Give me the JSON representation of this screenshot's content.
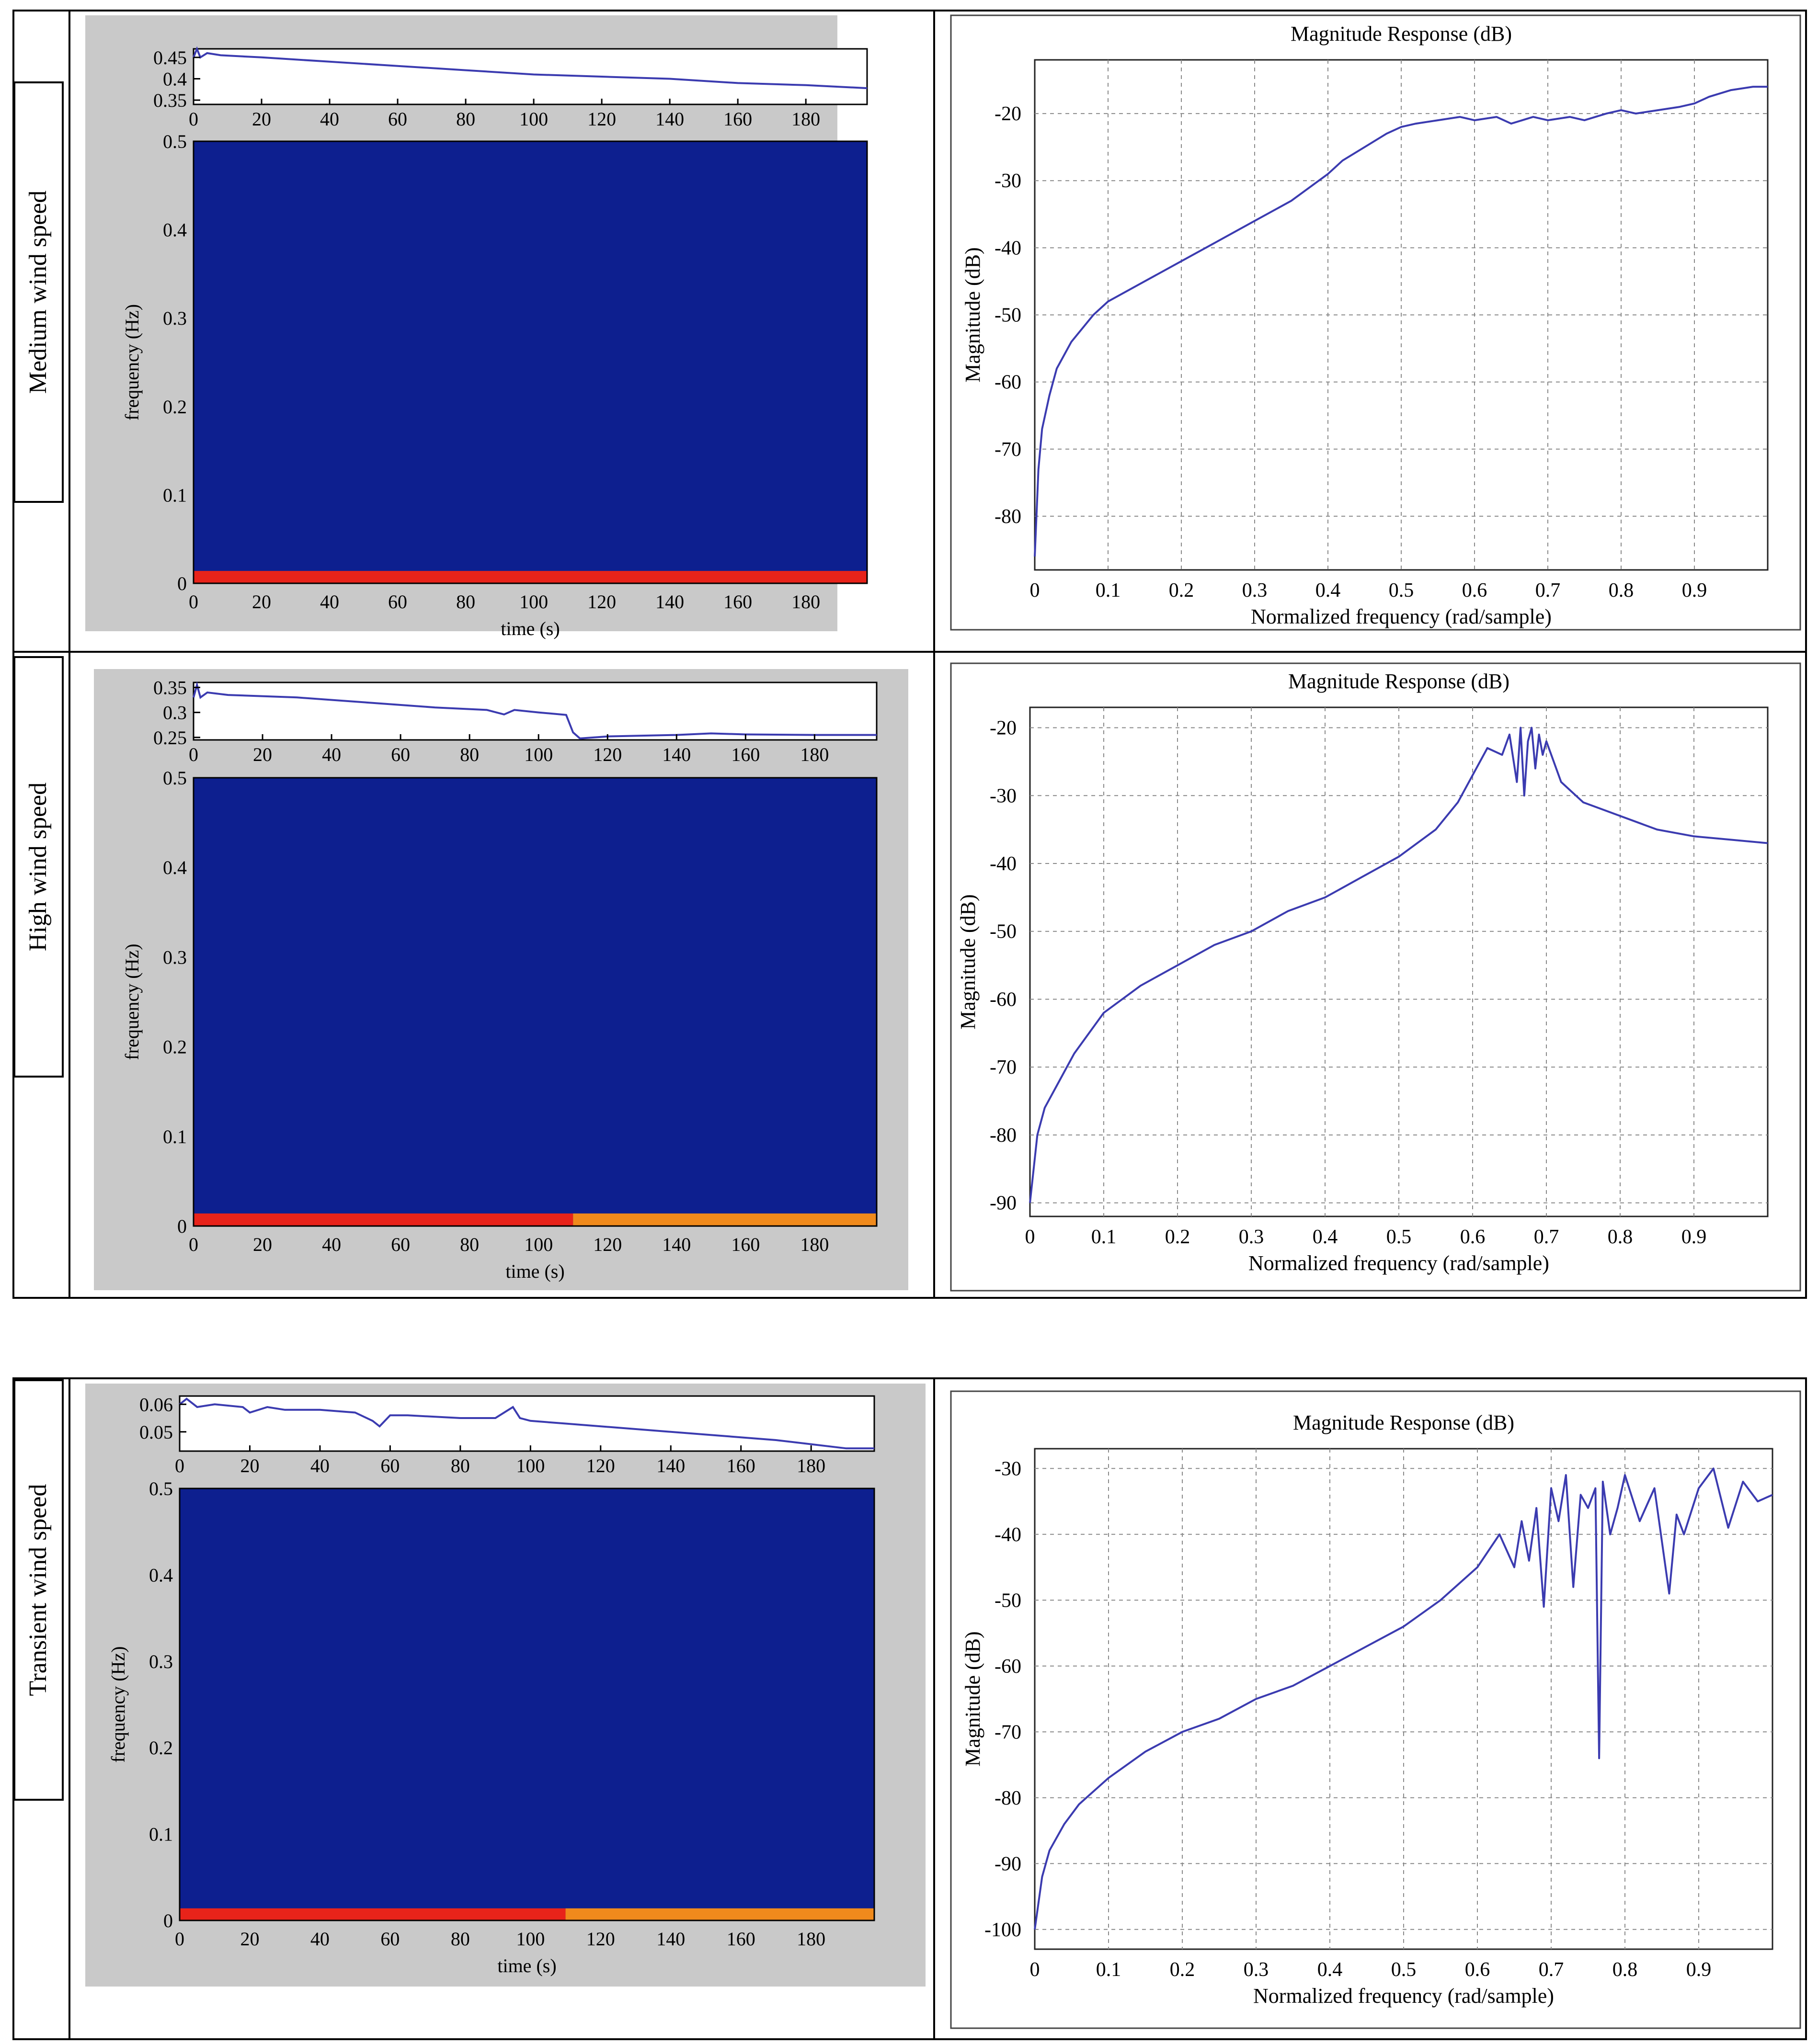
{
  "row_labels": [
    "Medium wind speed",
    "High wind speed",
    "Transient wind speed"
  ],
  "spectrogram_ylabel": "frequency (Hz)",
  "spectrogram_xlabel": "time (s)",
  "colors": {
    "panel_bg": "#c9c9c9",
    "spec_blue": "#0d1f8f",
    "spec_red": "#e8231a",
    "spec_orange": "#f08a1c",
    "trace": "#3b3bb0",
    "grid": "#8a8a8a"
  },
  "chart_data": [
    {
      "id": "medium-spectrogram",
      "type": "heatmap",
      "title": "",
      "xlabel": "time (s)",
      "ylabel": "frequency (Hz)",
      "xlim": [
        0,
        198
      ],
      "ylim": [
        0,
        0.5
      ],
      "xticks": [
        0,
        20,
        40,
        60,
        80,
        100,
        120,
        140,
        160,
        180
      ],
      "yticks": [
        0,
        0.1,
        0.2,
        0.3,
        0.4,
        0.5
      ],
      "yticklabels": [
        "0",
        "0.1",
        "0.2",
        "0.3",
        "0.4",
        "0.5"
      ],
      "background_level": "low",
      "low_band": [
        {
          "x_from": 0,
          "x_to": 198,
          "level": "high"
        }
      ],
      "trace": {
        "ylim": [
          0.34,
          0.47
        ],
        "yticks": [
          0.35,
          0.4,
          0.45
        ],
        "yticklabels": [
          "0.35",
          "0.4",
          "0.45"
        ],
        "x": [
          0,
          1,
          2,
          4,
          8,
          20,
          40,
          60,
          80,
          100,
          120,
          140,
          160,
          180,
          198
        ],
        "y": [
          0.45,
          0.47,
          0.45,
          0.46,
          0.455,
          0.45,
          0.44,
          0.43,
          0.42,
          0.41,
          0.405,
          0.4,
          0.39,
          0.385,
          0.378
        ]
      }
    },
    {
      "id": "medium-magnitude",
      "type": "line",
      "title": "Magnitude Response (dB)",
      "xlabel": "Normalized frequency (rad/sample)",
      "ylabel": "Magnitude (dB)",
      "xlim": [
        0,
        1
      ],
      "ylim": [
        -88,
        -12
      ],
      "xticks": [
        0,
        0.1,
        0.2,
        0.3,
        0.4,
        0.5,
        0.6,
        0.7,
        0.8,
        0.9
      ],
      "yticks": [
        -80,
        -70,
        -60,
        -50,
        -40,
        -30,
        -20
      ],
      "series": [
        {
          "x": [
            0,
            0.005,
            0.01,
            0.02,
            0.03,
            0.05,
            0.08,
            0.1,
            0.15,
            0.2,
            0.25,
            0.3,
            0.35,
            0.4,
            0.42,
            0.45,
            0.48,
            0.5,
            0.52,
            0.55,
            0.58,
            0.6,
            0.63,
            0.65,
            0.68,
            0.7,
            0.73,
            0.75,
            0.78,
            0.8,
            0.82,
            0.85,
            0.88,
            0.9,
            0.92,
            0.95,
            0.98,
            1.0
          ],
          "y": [
            -86,
            -73,
            -67,
            -62,
            -58,
            -54,
            -50,
            -48,
            -45,
            -42,
            -39,
            -36,
            -33,
            -29,
            -27,
            -25,
            -23,
            -22,
            -21.5,
            -21,
            -20.5,
            -21,
            -20.5,
            -21.5,
            -20.5,
            -21,
            -20.5,
            -21,
            -20,
            -19.5,
            -20,
            -19.5,
            -19,
            -18.5,
            -17.5,
            -16.5,
            -16,
            -16
          ]
        }
      ]
    },
    {
      "id": "high-spectrogram",
      "type": "heatmap",
      "title": "",
      "xlabel": "time (s)",
      "ylabel": "frequency (Hz)",
      "xlim": [
        0,
        198
      ],
      "ylim": [
        0,
        0.5
      ],
      "xticks": [
        0,
        20,
        40,
        60,
        80,
        100,
        120,
        140,
        160,
        180
      ],
      "yticks": [
        0,
        0.1,
        0.2,
        0.3,
        0.4,
        0.5
      ],
      "yticklabels": [
        "0",
        "0.1",
        "0.2",
        "0.3",
        "0.4",
        "0.5"
      ],
      "background_level": "low",
      "low_band": [
        {
          "x_from": 0,
          "x_to": 110,
          "level": "high"
        },
        {
          "x_from": 110,
          "x_to": 198,
          "level": "medium"
        }
      ],
      "trace": {
        "ylim": [
          0.245,
          0.36
        ],
        "yticks": [
          0.25,
          0.3,
          0.35
        ],
        "yticklabels": [
          "0.25",
          "0.3",
          "0.35"
        ],
        "x": [
          0,
          1,
          2,
          4,
          10,
          30,
          50,
          70,
          85,
          90,
          93,
          100,
          108,
          110,
          112,
          120,
          140,
          150,
          160,
          180,
          198
        ],
        "y": [
          0.33,
          0.355,
          0.33,
          0.34,
          0.335,
          0.33,
          0.32,
          0.31,
          0.305,
          0.296,
          0.305,
          0.3,
          0.295,
          0.26,
          0.248,
          0.252,
          0.255,
          0.258,
          0.256,
          0.255,
          0.255
        ]
      }
    },
    {
      "id": "high-magnitude",
      "type": "line",
      "title": "Magnitude Response (dB)",
      "xlabel": "Normalized frequency (rad/sample)",
      "ylabel": "Magnitude (dB)",
      "xlim": [
        0,
        1
      ],
      "ylim": [
        -92,
        -17
      ],
      "xticks": [
        0,
        0.1,
        0.2,
        0.3,
        0.4,
        0.5,
        0.6,
        0.7,
        0.8,
        0.9
      ],
      "yticks": [
        -90,
        -80,
        -70,
        -60,
        -50,
        -40,
        -30,
        -20
      ],
      "series": [
        {
          "x": [
            0,
            0.005,
            0.01,
            0.02,
            0.04,
            0.06,
            0.1,
            0.15,
            0.2,
            0.25,
            0.3,
            0.35,
            0.4,
            0.45,
            0.5,
            0.55,
            0.58,
            0.6,
            0.62,
            0.64,
            0.65,
            0.66,
            0.665,
            0.67,
            0.675,
            0.68,
            0.685,
            0.69,
            0.695,
            0.7,
            0.71,
            0.72,
            0.75,
            0.8,
            0.85,
            0.9,
            0.95,
            1.0
          ],
          "y": [
            -90,
            -85,
            -80,
            -76,
            -72,
            -68,
            -62,
            -58,
            -55,
            -52,
            -50,
            -47,
            -45,
            -42,
            -39,
            -35,
            -31,
            -27,
            -23,
            -24,
            -21,
            -28,
            -20,
            -30,
            -22,
            -20,
            -26,
            -21,
            -24,
            -22,
            -25,
            -28,
            -31,
            -33,
            -35,
            -36,
            -36.5,
            -37
          ]
        }
      ]
    },
    {
      "id": "transient-spectrogram",
      "type": "heatmap",
      "title": "",
      "xlabel": "time (s)",
      "ylabel": "frequency (Hz)",
      "xlim": [
        0,
        198
      ],
      "ylim": [
        0,
        0.5
      ],
      "xticks": [
        0,
        20,
        40,
        60,
        80,
        100,
        120,
        140,
        160,
        180
      ],
      "yticks": [
        0,
        0.1,
        0.2,
        0.3,
        0.4,
        0.5
      ],
      "yticklabels": [
        "0",
        "0.1",
        "0.2",
        "0.3",
        "0.4",
        "0.5"
      ],
      "background_level": "low",
      "low_band": [
        {
          "x_from": 0,
          "x_to": 110,
          "level": "high"
        },
        {
          "x_from": 110,
          "x_to": 198,
          "level": "medium"
        }
      ],
      "trace": {
        "ylim": [
          0.043,
          0.063
        ],
        "yticks": [
          0.05,
          0.06
        ],
        "yticklabels": [
          "0.05",
          "0.06"
        ],
        "x": [
          0,
          2,
          5,
          10,
          18,
          20,
          25,
          30,
          40,
          50,
          55,
          57,
          60,
          65,
          80,
          90,
          95,
          97,
          100,
          110,
          130,
          150,
          170,
          190,
          198
        ],
        "y": [
          0.06,
          0.062,
          0.059,
          0.06,
          0.059,
          0.057,
          0.059,
          0.058,
          0.058,
          0.057,
          0.054,
          0.052,
          0.056,
          0.056,
          0.055,
          0.055,
          0.059,
          0.055,
          0.054,
          0.053,
          0.051,
          0.049,
          0.047,
          0.044,
          0.044
        ]
      }
    },
    {
      "id": "transient-magnitude",
      "type": "line",
      "title": "Magnitude Response (dB)",
      "xlabel": "Normalized frequency (rad/sample)",
      "ylabel": "Magnitude (dB)",
      "xlim": [
        0,
        1
      ],
      "ylim": [
        -103,
        -27
      ],
      "xticks": [
        0,
        0.1,
        0.2,
        0.3,
        0.4,
        0.5,
        0.6,
        0.7,
        0.8,
        0.9
      ],
      "yticks": [
        -100,
        -90,
        -80,
        -70,
        -60,
        -50,
        -40,
        -30
      ],
      "series": [
        {
          "x": [
            0,
            0.005,
            0.01,
            0.02,
            0.04,
            0.06,
            0.1,
            0.15,
            0.2,
            0.25,
            0.3,
            0.35,
            0.4,
            0.45,
            0.5,
            0.55,
            0.6,
            0.63,
            0.65,
            0.66,
            0.67,
            0.68,
            0.69,
            0.7,
            0.71,
            0.72,
            0.73,
            0.74,
            0.75,
            0.76,
            0.765,
            0.77,
            0.78,
            0.79,
            0.8,
            0.82,
            0.84,
            0.86,
            0.87,
            0.88,
            0.9,
            0.92,
            0.94,
            0.96,
            0.98,
            1.0
          ],
          "y": [
            -100,
            -96,
            -92,
            -88,
            -84,
            -81,
            -77,
            -73,
            -70,
            -68,
            -65,
            -63,
            -60,
            -57,
            -54,
            -50,
            -45,
            -40,
            -45,
            -38,
            -44,
            -36,
            -51,
            -33,
            -38,
            -31,
            -48,
            -34,
            -36,
            -33,
            -74,
            -32,
            -40,
            -36,
            -31,
            -38,
            -33,
            -49,
            -37,
            -40,
            -33,
            -30,
            -39,
            -32,
            -35,
            -34
          ]
        }
      ]
    }
  ]
}
